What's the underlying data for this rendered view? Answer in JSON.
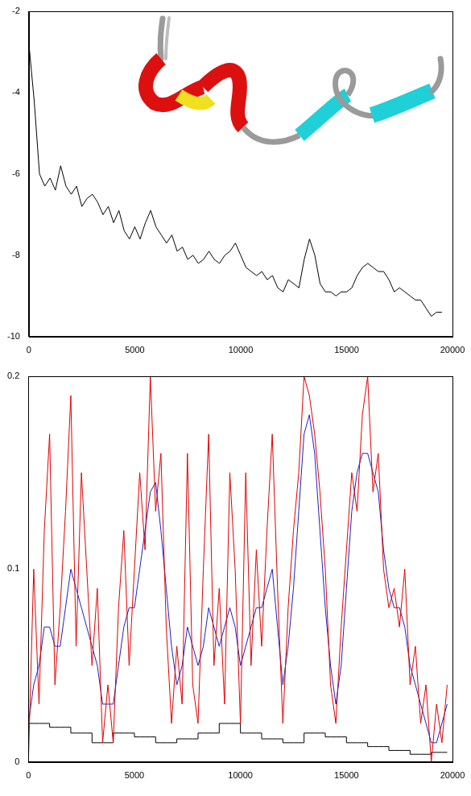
{
  "chart_data": [
    {
      "type": "line",
      "x": [
        0,
        250,
        500,
        750,
        1000,
        1250,
        1500,
        1750,
        2000,
        2250,
        2500,
        2750,
        3000,
        3250,
        3500,
        3750,
        4000,
        4250,
        4500,
        4750,
        5000,
        5250,
        5500,
        5750,
        6000,
        6250,
        6500,
        6750,
        7000,
        7250,
        7500,
        7750,
        8000,
        8250,
        8500,
        8750,
        9000,
        9250,
        9500,
        9750,
        10000,
        10250,
        10500,
        10750,
        11000,
        11250,
        11500,
        11750,
        12000,
        12250,
        12500,
        12750,
        13000,
        13250,
        13500,
        13750,
        14000,
        14250,
        14500,
        14750,
        15000,
        15250,
        15500,
        15750,
        16000,
        16250,
        16500,
        16750,
        17000,
        17250,
        17500,
        17750,
        18000,
        18250,
        18500,
        18750,
        19000,
        19250,
        19500
      ],
      "series": [
        {
          "color": "#000000",
          "line_style": "solid",
          "values": [
            -2.8,
            -4.2,
            -6.0,
            -6.3,
            -6.1,
            -6.4,
            -5.8,
            -6.3,
            -6.5,
            -6.3,
            -6.8,
            -6.6,
            -6.5,
            -6.7,
            -7.0,
            -6.8,
            -7.2,
            -6.9,
            -7.4,
            -7.6,
            -7.3,
            -7.6,
            -7.2,
            -6.9,
            -7.3,
            -7.5,
            -7.7,
            -7.5,
            -7.9,
            -7.8,
            -8.1,
            -8.0,
            -8.2,
            -8.1,
            -7.9,
            -8.1,
            -8.2,
            -8.0,
            -7.9,
            -7.7,
            -8.0,
            -8.3,
            -8.4,
            -8.5,
            -8.4,
            -8.6,
            -8.5,
            -8.8,
            -8.9,
            -8.6,
            -8.7,
            -8.8,
            -8.1,
            -7.6,
            -8.0,
            -8.7,
            -8.9,
            -8.9,
            -9.0,
            -8.9,
            -8.9,
            -8.8,
            -8.5,
            -8.3,
            -8.2,
            -8.3,
            -8.4,
            -8.4,
            -8.6,
            -8.9,
            -8.8,
            -8.9,
            -9.0,
            -9.1,
            -9.1,
            -9.3,
            -9.5,
            -9.4,
            -9.4
          ]
        }
      ],
      "xlim": [
        0,
        20000
      ],
      "xticks": [
        0,
        5000,
        10000,
        15000,
        20000
      ],
      "ylim": [
        -10,
        -2
      ],
      "yticks": [
        -10,
        -8,
        -6,
        -4,
        -2
      ],
      "grid": false
    },
    {
      "type": "line",
      "x": [
        0,
        250,
        500,
        750,
        1000,
        1250,
        1500,
        1750,
        2000,
        2250,
        2500,
        2750,
        3000,
        3250,
        3500,
        3750,
        4000,
        4250,
        4500,
        4750,
        5000,
        5250,
        5500,
        5750,
        6000,
        6250,
        6500,
        6750,
        7000,
        7250,
        7500,
        7750,
        8000,
        8250,
        8500,
        8750,
        9000,
        9250,
        9500,
        9750,
        10000,
        10250,
        10500,
        10750,
        11000,
        11250,
        11500,
        11750,
        12000,
        12250,
        12500,
        12750,
        13000,
        13250,
        13500,
        13750,
        14000,
        14250,
        14500,
        14750,
        15000,
        15250,
        15500,
        15750,
        16000,
        16250,
        16500,
        16750,
        17000,
        17250,
        17500,
        17750,
        18000,
        18250,
        18500,
        18750,
        19000,
        19250,
        19500,
        19750
      ],
      "series": [
        {
          "color": "#e00000",
          "line_style": "solid",
          "values": [
            0.0,
            0.1,
            0.03,
            0.12,
            0.17,
            0.04,
            0.08,
            0.13,
            0.19,
            0.06,
            0.15,
            0.1,
            0.05,
            0.09,
            0.01,
            0.04,
            0.01,
            0.08,
            0.12,
            0.05,
            0.1,
            0.15,
            0.11,
            0.2,
            0.13,
            0.16,
            0.07,
            0.02,
            0.06,
            0.03,
            0.16,
            0.04,
            0.02,
            0.1,
            0.17,
            0.05,
            0.09,
            0.03,
            0.15,
            0.1,
            0.02,
            0.15,
            0.05,
            0.11,
            0.06,
            0.12,
            0.17,
            0.09,
            0.02,
            0.08,
            0.12,
            0.15,
            0.2,
            0.19,
            0.17,
            0.14,
            0.1,
            0.04,
            0.02,
            0.07,
            0.11,
            0.15,
            0.13,
            0.18,
            0.2,
            0.14,
            0.16,
            0.1,
            0.08,
            0.09,
            0.07,
            0.1,
            0.04,
            0.06,
            0.02,
            0.04,
            0.0,
            0.03,
            0.01,
            0.04
          ]
        },
        {
          "color": "#2020c0",
          "line_style": "solid",
          "values": [
            0.02,
            0.04,
            0.05,
            0.07,
            0.07,
            0.06,
            0.06,
            0.08,
            0.1,
            0.09,
            0.08,
            0.07,
            0.06,
            0.05,
            0.03,
            0.03,
            0.03,
            0.05,
            0.07,
            0.08,
            0.08,
            0.1,
            0.12,
            0.14,
            0.145,
            0.12,
            0.09,
            0.06,
            0.04,
            0.05,
            0.07,
            0.06,
            0.05,
            0.06,
            0.08,
            0.07,
            0.06,
            0.07,
            0.08,
            0.07,
            0.05,
            0.06,
            0.07,
            0.08,
            0.08,
            0.09,
            0.1,
            0.07,
            0.04,
            0.06,
            0.09,
            0.13,
            0.17,
            0.18,
            0.16,
            0.12,
            0.08,
            0.05,
            0.03,
            0.05,
            0.09,
            0.13,
            0.15,
            0.16,
            0.16,
            0.15,
            0.14,
            0.11,
            0.09,
            0.08,
            0.08,
            0.07,
            0.05,
            0.04,
            0.03,
            0.02,
            0.01,
            0.01,
            0.02,
            0.03
          ]
        },
        {
          "color": "#000000",
          "line_style": "stepped",
          "values": [
            0.02,
            0.02,
            0.02,
            0.02,
            0.018,
            0.018,
            0.018,
            0.018,
            0.015,
            0.015,
            0.015,
            0.015,
            0.01,
            0.01,
            0.01,
            0.01,
            0.015,
            0.015,
            0.015,
            0.015,
            0.013,
            0.013,
            0.013,
            0.013,
            0.01,
            0.01,
            0.01,
            0.01,
            0.012,
            0.012,
            0.012,
            0.012,
            0.015,
            0.015,
            0.015,
            0.015,
            0.02,
            0.02,
            0.02,
            0.02,
            0.015,
            0.015,
            0.015,
            0.015,
            0.012,
            0.012,
            0.012,
            0.012,
            0.01,
            0.01,
            0.01,
            0.01,
            0.015,
            0.015,
            0.015,
            0.015,
            0.013,
            0.013,
            0.013,
            0.013,
            0.01,
            0.01,
            0.01,
            0.01,
            0.008,
            0.008,
            0.008,
            0.008,
            0.006,
            0.006,
            0.006,
            0.006,
            0.004,
            0.004,
            0.004,
            0.004,
            0.005,
            0.005,
            0.005,
            0.005
          ]
        }
      ],
      "xlim": [
        0,
        20000
      ],
      "xticks": [
        0,
        5000,
        10000,
        15000,
        20000
      ],
      "ylim": [
        0,
        0.2
      ],
      "yticks": [
        0,
        0.1,
        0.2
      ],
      "grid": false
    }
  ]
}
